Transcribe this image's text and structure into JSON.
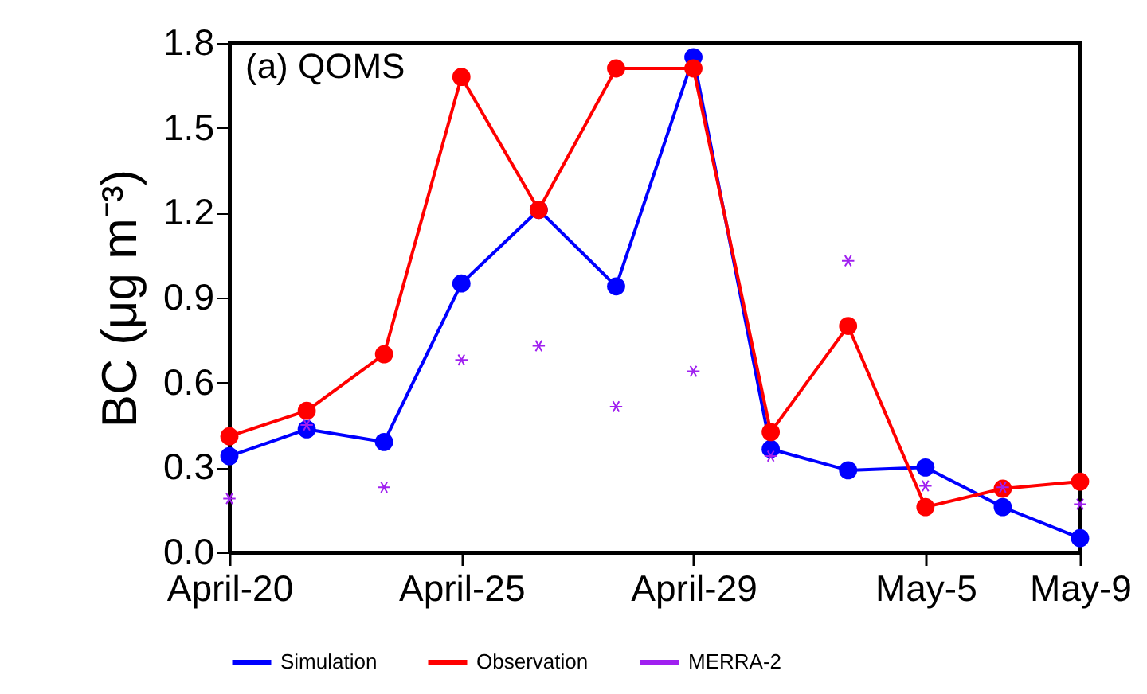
{
  "chart_data": {
    "type": "line",
    "ylabel": "BC (μg m⁻³)",
    "annotations": [
      "(a) QOMS"
    ],
    "categories": [
      "April-20",
      null,
      null,
      "April-25",
      null,
      null,
      "April-29",
      null,
      null,
      "May-5",
      null,
      "May-9"
    ],
    "series": [
      {
        "name": "Simulation",
        "color": "#0000ff",
        "marker": "circle",
        "values": [
          0.34,
          0.435,
          0.39,
          0.95,
          1.21,
          0.94,
          1.75,
          0.365,
          0.29,
          0.3,
          0.16,
          0.05
        ]
      },
      {
        "name": "Observation",
        "color": "#ff0000",
        "marker": "circle",
        "values": [
          0.41,
          0.5,
          0.7,
          1.68,
          1.21,
          1.71,
          1.71,
          0.425,
          0.8,
          0.16,
          0.225,
          0.25
        ]
      },
      {
        "name": "MERRA-2",
        "type": "scatter",
        "color": "#a020f0",
        "marker": "cross",
        "values": [
          0.19,
          0.45,
          0.23,
          0.68,
          0.73,
          0.515,
          0.64,
          0.34,
          1.03,
          0.235,
          0.23,
          0.17
        ]
      }
    ],
    "ylim": [
      0,
      1.8
    ],
    "yticks": [
      {
        "value": 0,
        "label": "0.0"
      },
      0.3,
      0.6,
      0.9,
      1.2,
      1.5,
      1.8
    ],
    "legend": "bottom",
    "line_style": "solid"
  }
}
